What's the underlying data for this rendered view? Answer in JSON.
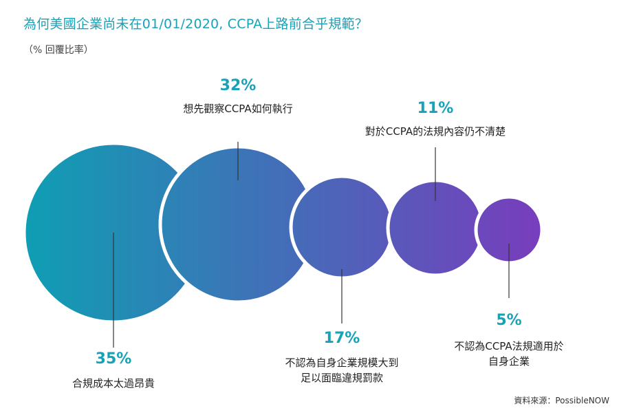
{
  "chart_data": {
    "type": "bubble",
    "title": "為何美國企業尚未在01/01/2020, CCPA上路前合乎規範？",
    "subtitle": "（% 回覆比率）",
    "source": "資料來源：PossibleNOW",
    "unit": "%",
    "categories": [
      "合規成本太過昂貴",
      "想先觀察CCPA如何執行",
      "不認為自身企業規模大到足以面臨違規罰款",
      "對於CCPA的法規內容仍不清楚",
      "不認為CCPA法規適用於自身企業"
    ],
    "values": [
      35,
      32,
      17,
      11,
      5
    ],
    "points": [
      {
        "value": 35,
        "value_label": "35%",
        "label_lines": [
          "合規成本太過昂貴"
        ]
      },
      {
        "value": 32,
        "value_label": "32%",
        "label_lines": [
          "想先觀察CCPA如何執行"
        ]
      },
      {
        "value": 17,
        "value_label": "17%",
        "label_lines": [
          "不認為自身企業規模大到",
          "足以面臨違規罰款"
        ]
      },
      {
        "value": 11,
        "value_label": "11%",
        "label_lines": [
          "對於CCPA的法規內容仍不清楚"
        ]
      },
      {
        "value": 5,
        "value_label": "5%",
        "label_lines": [
          "不認為CCPA法規適用於",
          "自身企業"
        ]
      }
    ],
    "colors": {
      "gradient_start": "#0e9fb3",
      "gradient_end": "#7a3bbd",
      "accent_text": "#17a2b8",
      "leader_line": "#333333"
    }
  }
}
